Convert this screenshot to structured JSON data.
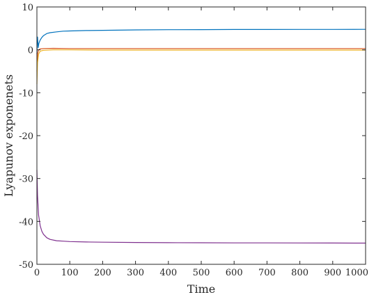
{
  "chart_data": {
    "type": "line",
    "title": "",
    "xlabel": "Time",
    "ylabel": "Lyapunov exponenets",
    "xlim": [
      0,
      1000
    ],
    "ylim": [
      -50,
      10
    ],
    "xticks": [
      0,
      100,
      200,
      300,
      400,
      500,
      600,
      700,
      800,
      900,
      1000
    ],
    "yticks": [
      10,
      0,
      -10,
      -20,
      -30,
      -40,
      -50
    ],
    "grid": false,
    "legend": "none",
    "series": [
      {
        "color": "#0072BD",
        "x": [
          0,
          1,
          2,
          4,
          6,
          10,
          15,
          20,
          30,
          40,
          60,
          80,
          100,
          150,
          200,
          300,
          400,
          500,
          600,
          700,
          800,
          900,
          1000
        ],
        "y": [
          -1.0,
          2.5,
          3.0,
          0.5,
          1.5,
          2.3,
          2.9,
          3.3,
          3.8,
          4.0,
          4.2,
          4.35,
          4.4,
          4.5,
          4.55,
          4.65,
          4.7,
          4.72,
          4.74,
          4.75,
          4.76,
          4.77,
          4.78
        ]
      },
      {
        "color": "#D95319",
        "x": [
          0,
          2,
          5,
          10,
          20,
          50,
          100,
          200,
          400,
          600,
          800,
          1000
        ],
        "y": [
          -5.0,
          -1.0,
          0.0,
          0.2,
          0.3,
          0.35,
          0.3,
          0.3,
          0.3,
          0.3,
          0.3,
          0.3
        ]
      },
      {
        "color": "#EDB120",
        "x": [
          0,
          2,
          5,
          10,
          20,
          50,
          100,
          200,
          400,
          600,
          800,
          1000
        ],
        "y": [
          -8.0,
          -3.0,
          -1.0,
          -0.3,
          -0.1,
          0.0,
          0.0,
          -0.05,
          -0.05,
          -0.05,
          -0.05,
          -0.05
        ]
      },
      {
        "color": "#7E2F8E",
        "x": [
          0,
          2,
          5,
          10,
          15,
          20,
          30,
          40,
          60,
          80,
          100,
          150,
          200,
          300,
          400,
          500,
          600,
          700,
          800,
          900,
          1000
        ],
        "y": [
          -28.0,
          -34.0,
          -38.5,
          -41.0,
          -42.3,
          -43.0,
          -43.8,
          -44.2,
          -44.5,
          -44.6,
          -44.7,
          -44.8,
          -44.85,
          -44.9,
          -44.95,
          -44.97,
          -45.0,
          -45.0,
          -45.02,
          -45.03,
          -45.05
        ]
      }
    ]
  }
}
